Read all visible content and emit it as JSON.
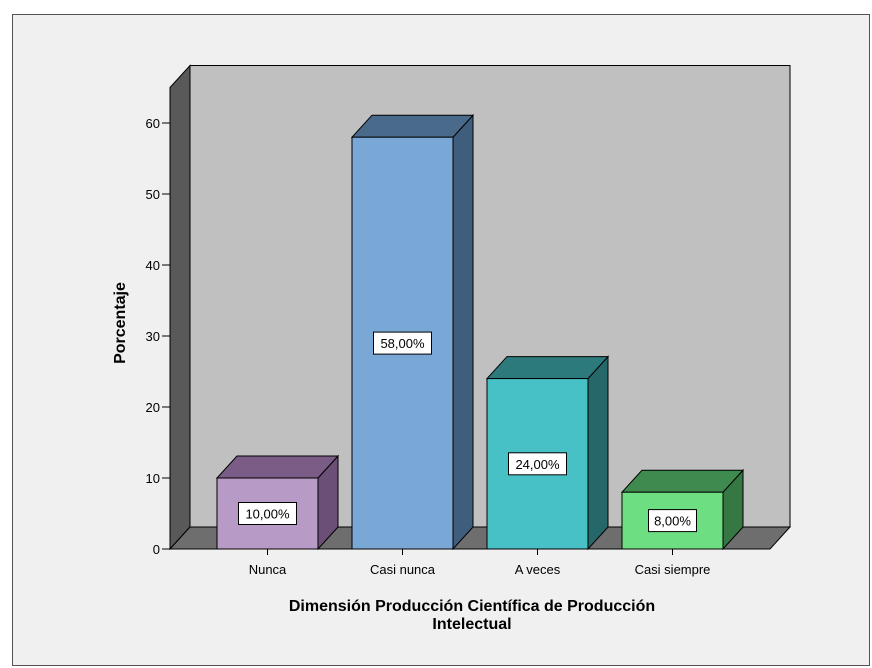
{
  "chart_data": {
    "type": "bar",
    "style": "3d",
    "categories": [
      "Nunca",
      "Casi nunca",
      "A veces",
      "Casi siempre"
    ],
    "values": [
      10,
      58,
      24,
      8
    ],
    "data_labels": [
      "10,00%",
      "58,00%",
      "24,00%",
      "8,00%"
    ],
    "ylabel": "Porcentaje",
    "xlabel_lines": [
      "Dimensión Producción Científica de Producción",
      "Intelectual"
    ],
    "yticks": [
      0,
      10,
      20,
      30,
      40,
      50,
      60
    ],
    "ylim": [
      0,
      65
    ],
    "grid": false,
    "colors": {
      "background": "#f0f0f0",
      "wall": "#c0c0c0",
      "side_wall": "#595959",
      "floor": "#6e6e6e",
      "bars": [
        {
          "front": "#b89ac6",
          "top": "#7a5c86",
          "side": "#6b4f77"
        },
        {
          "front": "#7aa8d6",
          "top": "#4a6a8c",
          "side": "#3f5d7d"
        },
        {
          "front": "#48c1c6",
          "top": "#2d7a7c",
          "side": "#26686a"
        },
        {
          "front": "#6ede82",
          "top": "#3f8a4e",
          "side": "#357843"
        }
      ]
    }
  }
}
